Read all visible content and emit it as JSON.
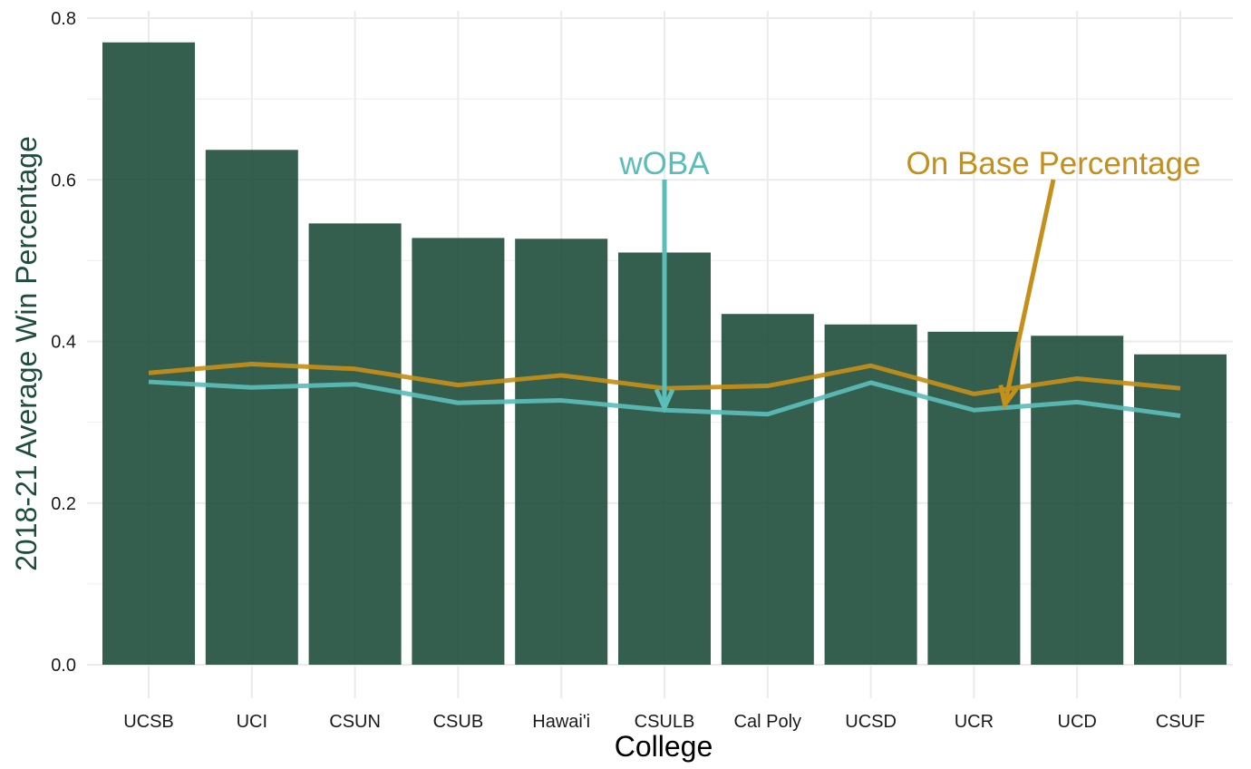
{
  "chart_data": {
    "type": "bar",
    "xlabel": "College",
    "ylabel": "2018-21 Average Win Percentage",
    "ylim": [
      0,
      0.8
    ],
    "yticks": [
      "0.0",
      "0.2",
      "0.4",
      "0.6",
      "0.8"
    ],
    "ytick_values": [
      0,
      0.2,
      0.4,
      0.6,
      0.8
    ],
    "grid": true,
    "categories": [
      "UCSB",
      "UCI",
      "CSUN",
      "CSUB",
      "Hawai'i",
      "CSULB",
      "Cal Poly",
      "UCSD",
      "UCR",
      "UCD",
      "CSUF"
    ],
    "series": [
      {
        "kind": "bar",
        "color": "#1e4d3b",
        "values": [
          0.77,
          0.637,
          0.546,
          0.528,
          0.527,
          0.51,
          0.434,
          0.421,
          0.412,
          0.407,
          0.384
        ]
      },
      {
        "kind": "line",
        "name": "On Base Percentage",
        "color": "#c48f1a",
        "values": [
          0.361,
          0.372,
          0.366,
          0.346,
          0.358,
          0.342,
          0.345,
          0.37,
          0.335,
          0.354,
          0.342
        ]
      },
      {
        "kind": "line",
        "name": "wOBA",
        "color": "#5bbdb7",
        "values": [
          0.35,
          0.343,
          0.347,
          0.324,
          0.327,
          0.315,
          0.31,
          0.349,
          0.315,
          0.325,
          0.308
        ]
      }
    ],
    "annotations": [
      {
        "text": "wOBA",
        "color": "#5bbdb7",
        "arrow_to_category": "CSULB",
        "arrow_to_value": 0.318
      },
      {
        "text": "On Base Percentage",
        "color": "#c48f1a",
        "arrow_to_category": "UCR",
        "arrow_to_value": 0.36
      }
    ]
  }
}
